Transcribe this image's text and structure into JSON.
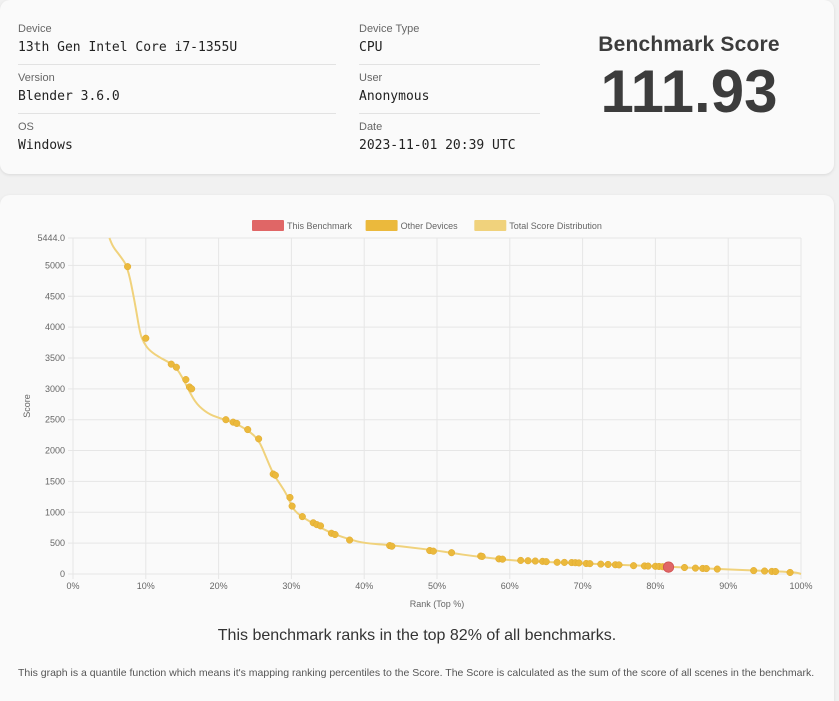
{
  "info": {
    "device_label": "Device",
    "device_value": "13th Gen Intel Core i7-1355U",
    "version_label": "Version",
    "version_value": "Blender 3.6.0",
    "os_label": "OS",
    "os_value": "Windows",
    "device_type_label": "Device Type",
    "device_type_value": "CPU",
    "user_label": "User",
    "user_value": "Anonymous",
    "date_label": "Date",
    "date_value": "2023-11-01 20:39 UTC"
  },
  "score": {
    "title": "Benchmark Score",
    "value": "111.93"
  },
  "rank_sentence": "This benchmark ranks in the top 82% of all benchmarks.",
  "footnote": "This graph is a quantile function which means it's mapping ranking percentiles to the Score. The Score is calculated as the sum of the score of all scenes in the benchmark.",
  "colors": {
    "this_benchmark": "#e06666",
    "other_devices": "#ebb93c",
    "distribution": "#f0d27c",
    "grid": "#e6e6e6",
    "axis_text": "#666666"
  },
  "chart_data": {
    "type": "scatter",
    "xlabel": "Rank (Top %)",
    "ylabel": "Score",
    "xlim": [
      0,
      100
    ],
    "ylim": [
      0,
      5444.0
    ],
    "x_ticks": [
      0,
      10,
      20,
      30,
      40,
      50,
      60,
      70,
      80,
      90,
      100
    ],
    "x_tick_labels": [
      "0%",
      "10%",
      "20%",
      "30%",
      "40%",
      "50%",
      "60%",
      "70%",
      "80%",
      "90%",
      "100%"
    ],
    "y_ticks": [
      0,
      500,
      1000,
      1500,
      2000,
      2500,
      3000,
      3500,
      4000,
      4500,
      5000,
      5444.0
    ],
    "y_tick_labels": [
      "0",
      "500",
      "1000",
      "1500",
      "2000",
      "2500",
      "3000",
      "3500",
      "4000",
      "4500",
      "5000",
      "5444.0"
    ],
    "grid": true,
    "legend_position": "top-center",
    "legend": [
      "This Benchmark",
      "Other Devices",
      "Total Score Distribution"
    ],
    "series": [
      {
        "name": "Total Score Distribution",
        "type": "line",
        "x": [
          5.0,
          5.5,
          6.5,
          7.5,
          8.5,
          9.2,
          9.7,
          10.5,
          12,
          14,
          15.2,
          16,
          17,
          18.5,
          20,
          22,
          24,
          25.5,
          26.5,
          27.5,
          28.5,
          29.5,
          30.2,
          31.5,
          33,
          34.5,
          36,
          38,
          40,
          43.5,
          47,
          50,
          52,
          55,
          58,
          60,
          62,
          65,
          70,
          75,
          80,
          85,
          90,
          93,
          96,
          98,
          99.5,
          100
        ],
        "y": [
          5444,
          5300,
          5150,
          4980,
          4400,
          3900,
          3750,
          3620,
          3500,
          3380,
          3150,
          2950,
          2750,
          2600,
          2530,
          2460,
          2330,
          2180,
          1900,
          1620,
          1450,
          1260,
          1050,
          920,
          820,
          720,
          640,
          560,
          500,
          470,
          420,
          380,
          340,
          290,
          250,
          225,
          210,
          195,
          170,
          150,
          125,
          100,
          75,
          60,
          45,
          35,
          20,
          0
        ]
      },
      {
        "name": "Other Devices",
        "type": "scatter",
        "x": [
          7.5,
          10,
          13.5,
          14.2,
          15.5,
          16.0,
          16.3,
          21,
          22,
          22.5,
          24,
          25.5,
          27.5,
          27.8,
          29.8,
          30.1,
          31.5,
          33,
          33.5,
          34,
          35.5,
          36,
          38,
          43.5,
          43.8,
          49,
          49.5,
          52,
          56,
          56.2,
          58.5,
          59.0,
          61.5,
          62.5,
          63.5,
          64.5,
          65,
          66.5,
          67.5,
          68.5,
          69.0,
          69.5,
          70.5,
          71,
          72.5,
          73.5,
          74.5,
          75,
          77,
          78.5,
          79,
          80,
          80.5,
          81,
          84,
          85.5,
          86.5,
          87,
          88.5,
          93.5,
          95,
          96,
          96.5,
          98.5
        ],
        "y": [
          4980,
          3820,
          3400,
          3350,
          3150,
          3030,
          3000,
          2500,
          2460,
          2440,
          2340,
          2190,
          1620,
          1600,
          1240,
          1100,
          930,
          830,
          800,
          780,
          660,
          640,
          550,
          460,
          450,
          380,
          370,
          345,
          290,
          285,
          245,
          240,
          220,
          215,
          210,
          205,
          200,
          190,
          188,
          185,
          183,
          180,
          170,
          168,
          160,
          155,
          150,
          148,
          135,
          130,
          128,
          125,
          122,
          118,
          105,
          95,
          90,
          88,
          80,
          55,
          48,
          42,
          40,
          25
        ]
      },
      {
        "name": "This Benchmark",
        "type": "scatter",
        "x": [
          81.8
        ],
        "y": [
          111.93
        ]
      }
    ]
  }
}
